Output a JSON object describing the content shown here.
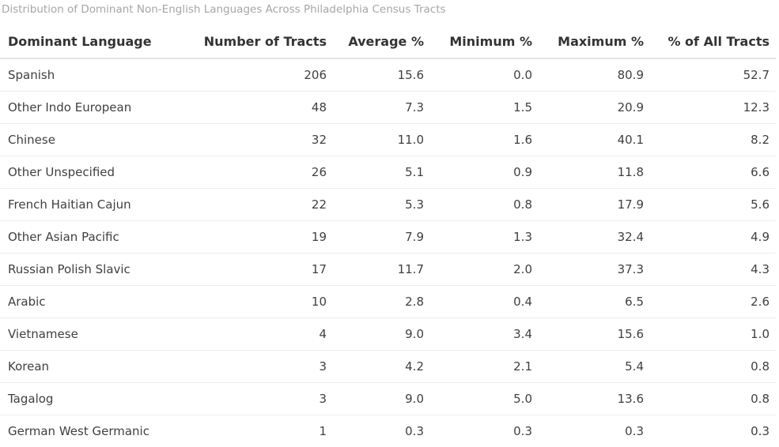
{
  "caption": "Distribution of Dominant Non-English Languages Across Philadelphia Census Tracts",
  "chart_data": {
    "type": "table",
    "title": "Distribution of Dominant Non-English Languages Across Philadelphia Census Tracts",
    "columns": [
      "Dominant Language",
      "Number of Tracts",
      "Average %",
      "Minimum %",
      "Maximum %",
      "% of All Tracts"
    ],
    "rows": [
      [
        "Spanish",
        "206",
        "15.6",
        "0.0",
        "80.9",
        "52.7"
      ],
      [
        "Other Indo European",
        "48",
        "7.3",
        "1.5",
        "20.9",
        "12.3"
      ],
      [
        "Chinese",
        "32",
        "11.0",
        "1.6",
        "40.1",
        "8.2"
      ],
      [
        "Other Unspecified",
        "26",
        "5.1",
        "0.9",
        "11.8",
        "6.6"
      ],
      [
        "French Haitian Cajun",
        "22",
        "5.3",
        "0.8",
        "17.9",
        "5.6"
      ],
      [
        "Other Asian Pacific",
        "19",
        "7.9",
        "1.3",
        "32.4",
        "4.9"
      ],
      [
        "Russian Polish Slavic",
        "17",
        "11.7",
        "2.0",
        "37.3",
        "4.3"
      ],
      [
        "Arabic",
        "10",
        "2.8",
        "0.4",
        "6.5",
        "2.6"
      ],
      [
        "Vietnamese",
        "4",
        "9.0",
        "3.4",
        "15.6",
        "1.0"
      ],
      [
        "Korean",
        "3",
        "4.2",
        "2.1",
        "5.4",
        "0.8"
      ],
      [
        "Tagalog",
        "3",
        "9.0",
        "5.0",
        "13.6",
        "0.8"
      ],
      [
        "German West Germanic",
        "1",
        "0.3",
        "0.3",
        "0.3",
        "0.3"
      ]
    ]
  }
}
